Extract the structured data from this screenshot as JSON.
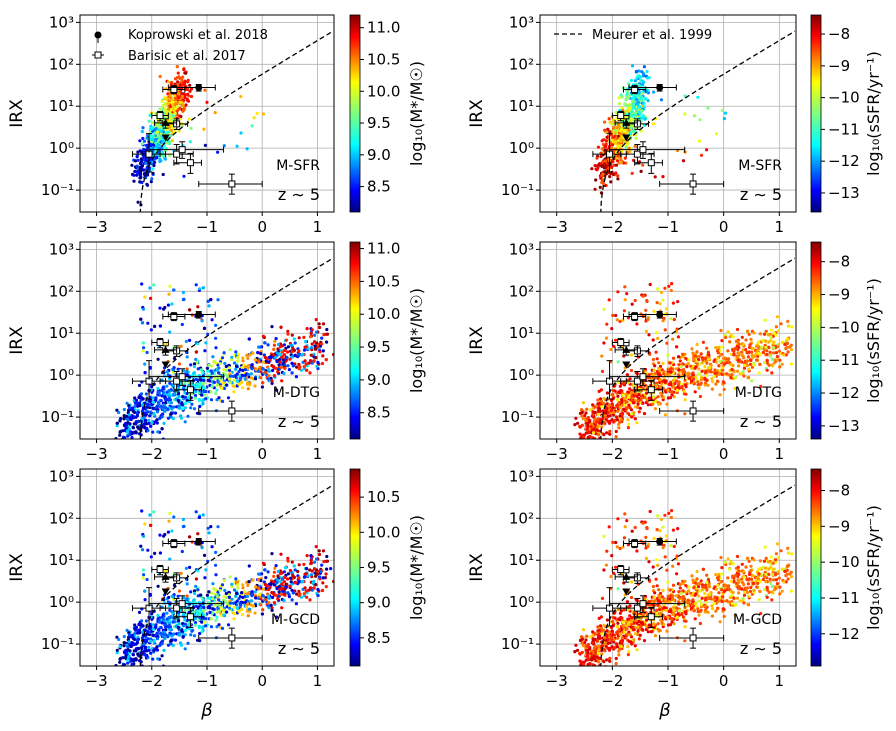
{
  "figure": {
    "xlabel": "β",
    "ylabel": "IRX",
    "redshift_label": "z ∼ 5",
    "colorbar_mass_label": "log₁₀(M*/M☉)",
    "colorbar_ssfr_label": "log₁₀(sSFR/yr⁻¹)",
    "colormap": [
      "#00007f",
      "#0000ff",
      "#007fff",
      "#00ffff",
      "#7fff7f",
      "#ffff00",
      "#ff7f00",
      "#ff0000",
      "#7f0000"
    ]
  },
  "chart_data": [
    {
      "type": "scatter",
      "panel": "M-SFR",
      "color_quantity": "mass",
      "clim": [
        8.1,
        11.2
      ],
      "cbar_ticks": [
        "8.5",
        "9.0",
        "9.5",
        "10.0",
        "10.5",
        "11.0"
      ],
      "legend_koprowski": "Koprowski et al. 2018",
      "legend_barisic": "Barisic et al. 2017",
      "show_obs_legend": true,
      "show_meurer_legend": false,
      "xlim": [
        -3.3,
        1.3
      ],
      "ylim": [
        0.03,
        1500
      ],
      "yscale": "log"
    },
    {
      "type": "scatter",
      "panel": "M-SFR",
      "color_quantity": "ssfr",
      "clim": [
        -13.6,
        -7.4
      ],
      "cbar_ticks": [
        "−8",
        "−9",
        "−10",
        "−11",
        "−12",
        "−13"
      ],
      "legend_meurer": "Meurer et al. 1999",
      "show_obs_legend": false,
      "show_meurer_legend": true,
      "xlim": [
        -3.3,
        1.3
      ],
      "ylim": [
        0.03,
        1500
      ],
      "yscale": "log"
    },
    {
      "type": "scatter",
      "panel": "M-DTG",
      "color_quantity": "mass",
      "clim": [
        8.1,
        11.1
      ],
      "cbar_ticks": [
        "8.5",
        "9.0",
        "9.5",
        "10.0",
        "10.5",
        "11.0"
      ],
      "show_obs_legend": false,
      "show_meurer_legend": false,
      "xlim": [
        -3.3,
        1.3
      ],
      "ylim": [
        0.03,
        1500
      ],
      "yscale": "log"
    },
    {
      "type": "scatter",
      "panel": "M-DTG",
      "color_quantity": "ssfr",
      "clim": [
        -13.4,
        -7.4
      ],
      "cbar_ticks": [
        "−8",
        "−9",
        "−10",
        "−11",
        "−12",
        "−13"
      ],
      "show_obs_legend": false,
      "show_meurer_legend": false,
      "xlim": [
        -3.3,
        1.3
      ],
      "ylim": [
        0.03,
        1500
      ],
      "yscale": "log"
    },
    {
      "type": "scatter",
      "panel": "M-GCD",
      "color_quantity": "mass",
      "clim": [
        8.1,
        10.9
      ],
      "cbar_ticks": [
        "8.5",
        "9.0",
        "9.5",
        "10.0",
        "10.5"
      ],
      "show_obs_legend": false,
      "show_meurer_legend": false,
      "xlim": [
        -3.3,
        1.3
      ],
      "ylim": [
        0.03,
        1500
      ],
      "yscale": "log"
    },
    {
      "type": "scatter",
      "panel": "M-GCD",
      "color_quantity": "ssfr",
      "clim": [
        -12.9,
        -7.4
      ],
      "cbar_ticks": [
        "−8",
        "−9",
        "−10",
        "−11",
        "−12"
      ],
      "show_obs_legend": false,
      "show_meurer_legend": false,
      "xlim": [
        -3.3,
        1.3
      ],
      "ylim": [
        0.03,
        1500
      ],
      "yscale": "log"
    }
  ],
  "observations": {
    "koprowski": [
      {
        "beta": -1.15,
        "irx": 28,
        "xerr": [
          0.55,
          0.3
        ],
        "yerr": [
          5,
          5
        ]
      },
      {
        "beta": -1.75,
        "irx": 4.0,
        "xerr": 0.2,
        "yerr": [
          1.0,
          1.0
        ],
        "marker": "up"
      },
      {
        "beta": -1.75,
        "irx": 1.8,
        "marker": "down"
      }
    ],
    "barisic": [
      {
        "beta": -1.6,
        "irx": 25,
        "xerr": [
          0.2,
          0.2
        ],
        "yerr": [
          5,
          6
        ]
      },
      {
        "beta": -1.85,
        "irx": 6.0,
        "xerr": [
          0.15,
          0.15
        ],
        "yerr": [
          1.5,
          1.5
        ]
      },
      {
        "beta": -1.55,
        "irx": 3.8,
        "xerr": [
          0.25,
          0.2
        ],
        "yerr": [
          1.0,
          1.2
        ]
      },
      {
        "beta": -2.05,
        "irx": 0.72,
        "xerr": [
          0.3,
          0.3
        ],
        "yerr": [
          0.45,
          1.5
        ]
      },
      {
        "beta": -1.55,
        "irx": 0.72,
        "xerr": [
          0.3,
          0.3
        ],
        "yerr": [
          0.3,
          0.5
        ]
      },
      {
        "beta": -1.45,
        "irx": 0.92,
        "xerr": [
          0.6,
          0.75
        ],
        "yerr": [
          0.35,
          0.5
        ]
      },
      {
        "beta": -1.3,
        "irx": 0.45,
        "xerr": [
          0.3,
          0.2
        ],
        "yerr": [
          0.2,
          0.3
        ]
      },
      {
        "beta": -0.55,
        "irx": 0.14,
        "xerr": [
          0.6,
          0.55
        ],
        "yerr": [
          0.06,
          0.1
        ]
      }
    ]
  }
}
